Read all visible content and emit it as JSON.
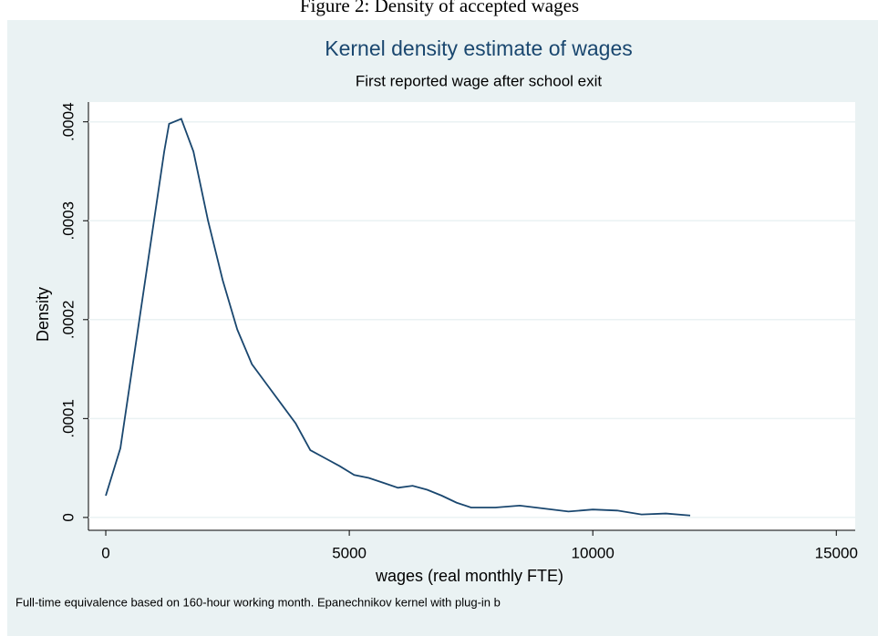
{
  "chart_data": {
    "type": "line",
    "caption": "Figure 2: Density of accepted wages",
    "title": "Kernel density estimate of wages",
    "subtitle": "First reported wage after school exit",
    "xlabel": "wages (real monthly FTE)",
    "ylabel": "Density",
    "note": "Full-time equivalence based on 160-hour working month. Epanechnikov kernel with plug-in b",
    "x": [
      0,
      300,
      600,
      900,
      1200,
      1300,
      1550,
      1800,
      2100,
      2400,
      2700,
      3000,
      3300,
      3600,
      3900,
      4200,
      4500,
      4800,
      5100,
      5400,
      5700,
      6000,
      6300,
      6600,
      6900,
      7200,
      7500,
      8000,
      8500,
      9000,
      9500,
      10000,
      10500,
      11000,
      11500,
      12000
    ],
    "series": [
      {
        "name": "Density",
        "color": "#1a476f",
        "values": [
          2.2e-05,
          7e-05,
          0.00017,
          0.00027,
          0.00037,
          0.000398,
          0.000403,
          0.00037,
          0.0003,
          0.00024,
          0.00019,
          0.000155,
          0.000135,
          0.000115,
          9.5e-05,
          6.8e-05,
          6e-05,
          5.2e-05,
          4.3e-05,
          4e-05,
          3.5e-05,
          3e-05,
          3.2e-05,
          2.8e-05,
          2.2e-05,
          1.5e-05,
          1e-05,
          1e-05,
          1.2e-05,
          9e-06,
          6e-06,
          8e-06,
          7e-06,
          3e-06,
          4e-06,
          2e-06
        ]
      }
    ],
    "xlim": [
      -356,
      15388
    ],
    "ylim": [
      -1.3e-05,
      0.00042
    ],
    "xticks": [
      0,
      5000,
      10000,
      15000
    ],
    "yticks": [
      0,
      {
        "value": 0.0001,
        "label": ".0001"
      },
      {
        "value": 0.0002,
        "label": ".0002"
      },
      {
        "value": 0.0003,
        "label": ".0003"
      },
      {
        "value": 0.0004,
        "label": ".0004"
      }
    ],
    "grid": true
  }
}
